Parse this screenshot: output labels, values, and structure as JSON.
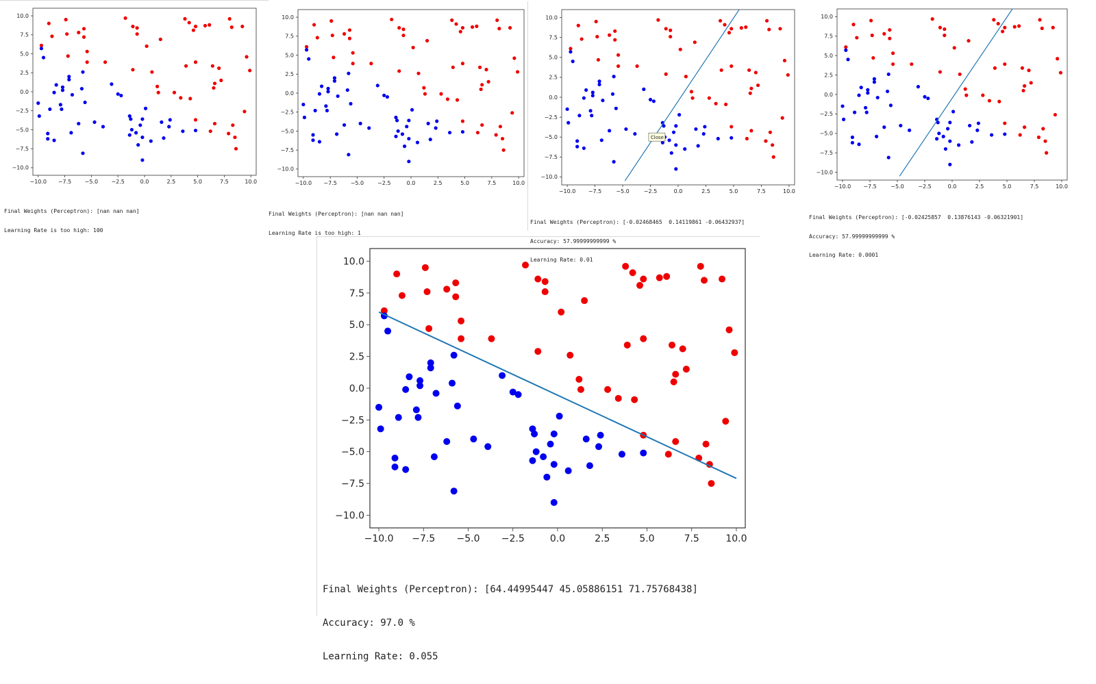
{
  "colors": {
    "class_red": "#ee0000",
    "class_blue": "#0000ee",
    "boundary": "#1f77b4",
    "tooltip_bg": "#ffffe1"
  },
  "tooltip": {
    "label": "Close",
    "panel": 2
  },
  "dataset": {
    "red": [
      [
        -9.7,
        6.1
      ],
      [
        -9.0,
        9.0
      ],
      [
        -8.7,
        7.3
      ],
      [
        -7.4,
        9.5
      ],
      [
        -7.3,
        7.6
      ],
      [
        -7.2,
        4.7
      ],
      [
        -6.2,
        7.8
      ],
      [
        -5.7,
        8.3
      ],
      [
        -5.7,
        7.2
      ],
      [
        -5.4,
        5.3
      ],
      [
        -5.4,
        3.9
      ],
      [
        -3.7,
        3.9
      ],
      [
        -1.8,
        9.7
      ],
      [
        -1.1,
        8.6
      ],
      [
        -1.1,
        2.9
      ],
      [
        -0.7,
        8.4
      ],
      [
        -0.7,
        7.6
      ],
      [
        0.2,
        6.0
      ],
      [
        0.7,
        2.6
      ],
      [
        1.2,
        0.7
      ],
      [
        1.3,
        -0.1
      ],
      [
        1.5,
        6.9
      ],
      [
        2.8,
        -0.1
      ],
      [
        3.4,
        -0.8
      ],
      [
        3.8,
        9.6
      ],
      [
        3.9,
        3.4
      ],
      [
        4.2,
        9.1
      ],
      [
        4.3,
        -0.9
      ],
      [
        4.6,
        8.1
      ],
      [
        4.8,
        8.6
      ],
      [
        4.8,
        3.9
      ],
      [
        4.8,
        -3.7
      ],
      [
        5.7,
        8.7
      ],
      [
        6.1,
        8.8
      ],
      [
        6.4,
        3.4
      ],
      [
        6.5,
        0.5
      ],
      [
        6.6,
        1.1
      ],
      [
        6.6,
        -4.2
      ],
      [
        6.2,
        -5.2
      ],
      [
        7.0,
        3.1
      ],
      [
        7.2,
        1.5
      ],
      [
        8.0,
        9.6
      ],
      [
        8.2,
        8.5
      ],
      [
        7.9,
        -5.5
      ],
      [
        8.3,
        -4.4
      ],
      [
        8.5,
        -6.0
      ],
      [
        8.6,
        -7.5
      ],
      [
        9.2,
        8.6
      ],
      [
        9.4,
        -2.6
      ],
      [
        9.6,
        4.6
      ],
      [
        9.9,
        2.8
      ]
    ],
    "blue": [
      [
        -10.0,
        -1.5
      ],
      [
        -9.9,
        -3.2
      ],
      [
        -9.7,
        5.7
      ],
      [
        -9.5,
        4.5
      ],
      [
        -9.1,
        -5.5
      ],
      [
        -9.1,
        -6.2
      ],
      [
        -8.9,
        -2.3
      ],
      [
        -8.5,
        -6.4
      ],
      [
        -8.5,
        -0.1
      ],
      [
        -8.3,
        0.9
      ],
      [
        -7.9,
        -1.7
      ],
      [
        -7.8,
        -2.3
      ],
      [
        -7.7,
        0.6
      ],
      [
        -7.7,
        0.2
      ],
      [
        -7.1,
        2.0
      ],
      [
        -7.1,
        1.6
      ],
      [
        -6.8,
        -0.4
      ],
      [
        -6.9,
        -5.4
      ],
      [
        -6.2,
        -4.2
      ],
      [
        -5.9,
        0.4
      ],
      [
        -5.8,
        2.6
      ],
      [
        -5.8,
        -8.1
      ],
      [
        -5.6,
        -1.4
      ],
      [
        -4.7,
        -4.0
      ],
      [
        -3.9,
        -4.6
      ],
      [
        -3.1,
        1.0
      ],
      [
        -2.5,
        -0.3
      ],
      [
        -2.2,
        -0.5
      ],
      [
        -1.4,
        -3.2
      ],
      [
        -1.3,
        -3.6
      ],
      [
        -1.4,
        -5.7
      ],
      [
        -1.2,
        -5.0
      ],
      [
        -0.8,
        -5.4
      ],
      [
        -0.6,
        -7.0
      ],
      [
        -0.4,
        -4.4
      ],
      [
        -0.2,
        -3.6
      ],
      [
        -0.2,
        -9.0
      ],
      [
        -0.2,
        -6.0
      ],
      [
        0.1,
        -2.2
      ],
      [
        0.6,
        -6.5
      ],
      [
        1.6,
        -4.0
      ],
      [
        1.8,
        -6.1
      ],
      [
        2.3,
        -4.6
      ],
      [
        2.4,
        -3.7
      ],
      [
        3.6,
        -5.2
      ],
      [
        4.8,
        -5.1
      ]
    ]
  },
  "panels": [
    {
      "xticks": [
        "−10.0",
        "−7.5",
        "−5.0",
        "−2.5",
        "0.0",
        "2.5",
        "5.0",
        "7.5",
        "10.0"
      ],
      "yticks": [
        "−10.0",
        "−7.5",
        "−5.0",
        "−2.5",
        "0.0",
        "2.5",
        "5.0",
        "7.5",
        "10.0"
      ],
      "boundary": null,
      "caption_lines": [
        "Final Weights (Perceptron): [nan nan nan]",
        "Learning Rate is too high: 100"
      ]
    },
    {
      "xticks": [
        "−10.0",
        "−7.5",
        "−5.0",
        "−2.5",
        "0.0",
        "2.5",
        "5.0",
        "7.5",
        "10.0"
      ],
      "yticks": [
        "−10.0",
        "−7.5",
        "−5.0",
        "−2.5",
        "0.0",
        "2.5",
        "5.0",
        "7.5",
        "10.0"
      ],
      "boundary": null,
      "caption_lines": [
        "Final Weights (Perceptron): [nan nan nan]",
        "Learning Rate is too high: 1"
      ]
    },
    {
      "xticks": [
        "−10.0",
        "−7.5",
        "−5.0",
        "−2.5",
        "0.0",
        "2.5",
        "5.0",
        "7.5",
        "10.0"
      ],
      "yticks": [
        "−10.0",
        "−7.5",
        "−5.0",
        "−2.5",
        "0.0",
        "2.5",
        "5.0",
        "7.5",
        "10.0"
      ],
      "boundary": [
        [
          -4.8,
          -10.5
        ],
        [
          5.6,
          11.2
        ]
      ],
      "caption_lines": [
        "Final Weights (Perceptron): [-0.02468465  0.14119861 -0.06432937]",
        "Accuracy: 57.99999999999 %",
        "Learning Rate: 0.01"
      ]
    },
    {
      "xticks": [
        "−10.0",
        "−7.5",
        "−5.0",
        "−2.5",
        "0.0",
        "2.5",
        "5.0",
        "7.5",
        "10.0"
      ],
      "yticks": [
        "−10.0",
        "−7.5",
        "−5.0",
        "−2.5",
        "0.0",
        "2.5",
        "5.0",
        "7.5",
        "10.0"
      ],
      "boundary": [
        [
          -4.8,
          -10.5
        ],
        [
          5.6,
          11.2
        ]
      ],
      "caption_lines": [
        "Final Weights (Perceptron): [-0.02425857  0.13876143 -0.06321901]",
        "Accuracy: 57.99999999999 %",
        "Learning Rate: 0.0001"
      ]
    },
    {
      "xticks": [
        "−10.0",
        "−7.5",
        "−5.0",
        "−2.5",
        "0.0",
        "2.5",
        "5.0",
        "7.5",
        "10.0"
      ],
      "yticks": [
        "−10.0",
        "−7.5",
        "−5.0",
        "−2.5",
        "0.0",
        "2.5",
        "5.0",
        "7.5",
        "10.0"
      ],
      "boundary": [
        [
          -10.0,
          6.0
        ],
        [
          10.0,
          -7.1
        ]
      ],
      "caption_lines": [
        "Final Weights (Perceptron): [64.44995447 45.05886151 71.75768438]",
        "Accuracy: 97.0 %",
        "Learning Rate: 0.055"
      ]
    }
  ],
  "chart_data": [
    {
      "type": "scatter",
      "xlim": [
        -10.5,
        10.5
      ],
      "ylim": [
        -11,
        11
      ],
      "grid": false,
      "series": [
        {
          "points": "dataset.red"
        },
        {
          "points": "dataset.blue"
        }
      ]
    },
    {
      "type": "scatter",
      "xlim": [
        -10.5,
        10.5
      ],
      "ylim": [
        -11,
        11
      ],
      "grid": false,
      "series": [
        {
          "points": "dataset.red"
        },
        {
          "points": "dataset.blue"
        }
      ]
    },
    {
      "type": "scatter",
      "xlim": [
        -10.5,
        10.5
      ],
      "ylim": [
        -11,
        11
      ],
      "grid": false,
      "series": [
        {
          "points": "dataset.red"
        },
        {
          "points": "dataset.blue"
        }
      ]
    },
    {
      "type": "scatter",
      "xlim": [
        -10.5,
        10.5
      ],
      "ylim": [
        -11,
        11
      ],
      "grid": false,
      "series": [
        {
          "points": "dataset.red"
        },
        {
          "points": "dataset.blue"
        }
      ]
    },
    {
      "type": "scatter",
      "xlim": [
        -10.5,
        10.5
      ],
      "ylim": [
        -11,
        11
      ],
      "grid": false,
      "series": [
        {
          "points": "dataset.red"
        },
        {
          "points": "dataset.blue"
        }
      ]
    }
  ]
}
